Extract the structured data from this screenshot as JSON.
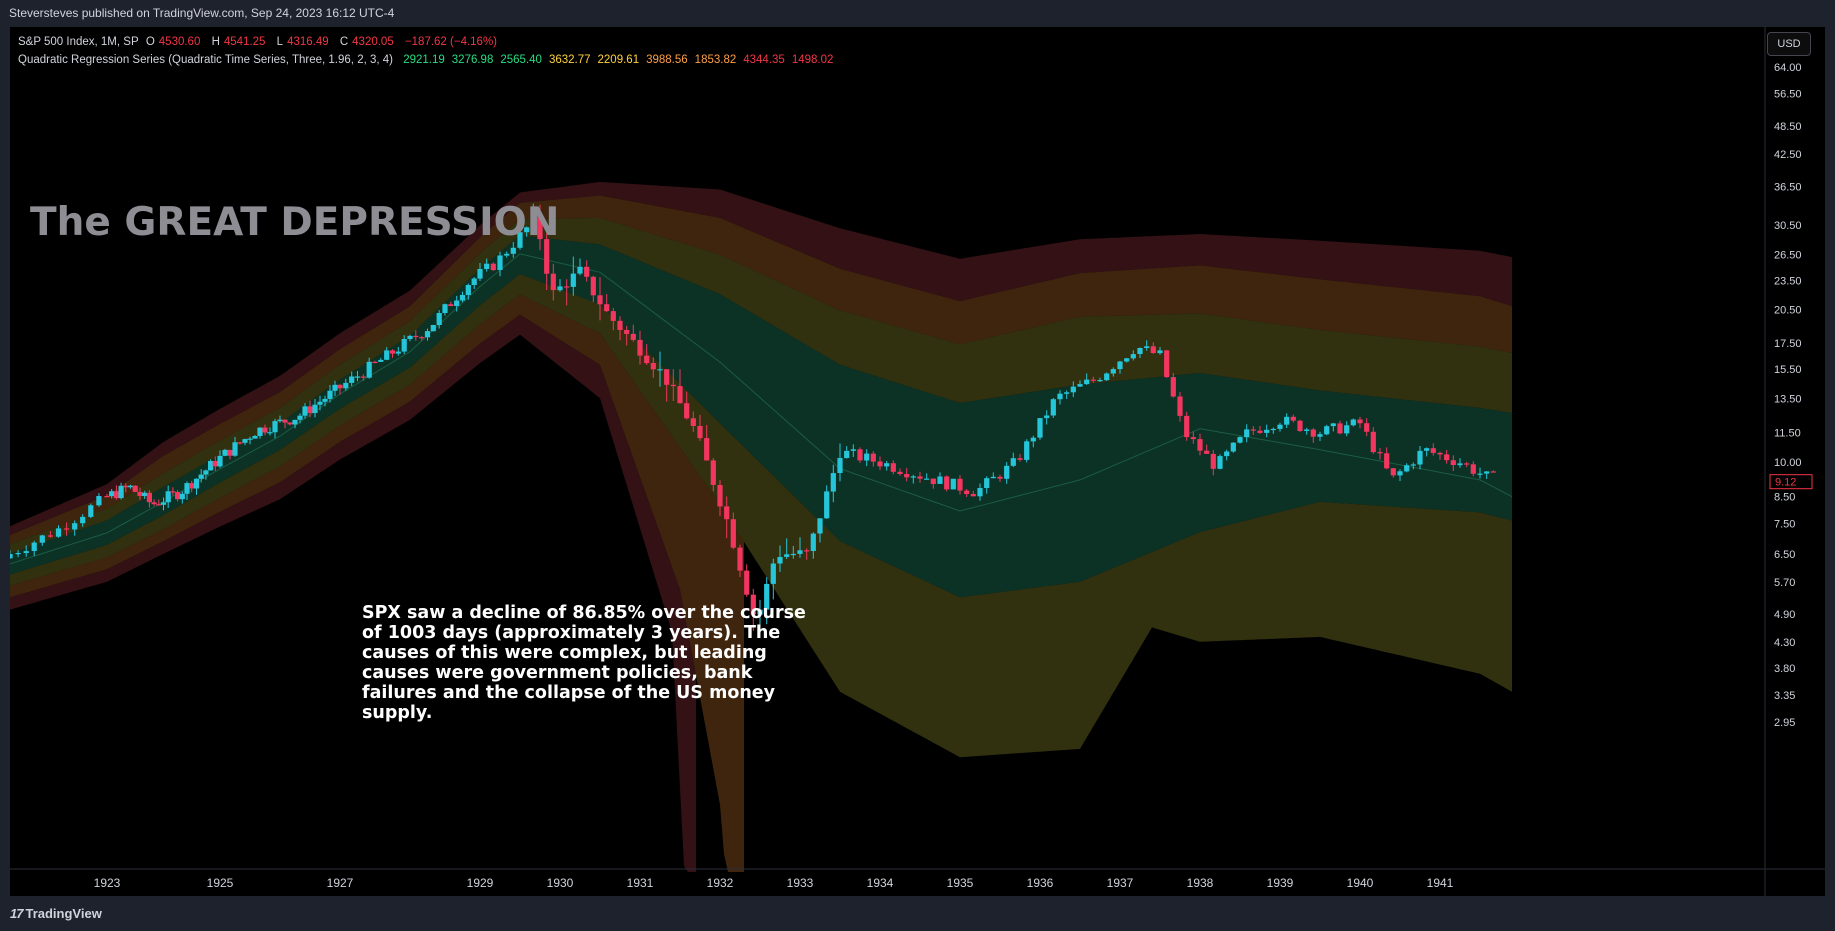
{
  "header": {
    "published": "Steversteves published on TradingView.com, Sep 24, 2023 16:12 UTC-4"
  },
  "legend": {
    "symbol": "S&P 500 Index, 1M, SP",
    "o_label": "O",
    "o_value": "4530.60",
    "h_label": "H",
    "h_value": "4541.25",
    "l_label": "L",
    "l_value": "4316.49",
    "c_label": "C",
    "c_value": "4320.05",
    "change": "−187.62 (−4.16%)",
    "indicator_name": "Quadratic Regression Series (Quadratic Time Series, Three, 1.96, 2, 3, 4)",
    "indicator_values": [
      {
        "text": "2921.19",
        "color": "#26de81"
      },
      {
        "text": "3276.98",
        "color": "#26de81"
      },
      {
        "text": "2565.40",
        "color": "#26de81"
      },
      {
        "text": "3632.77",
        "color": "#ffd23f"
      },
      {
        "text": "2209.61",
        "color": "#ffd23f"
      },
      {
        "text": "3988.56",
        "color": "#ff9f43"
      },
      {
        "text": "1853.82",
        "color": "#ff9f43"
      },
      {
        "text": "4344.35",
        "color": "#f23645"
      },
      {
        "text": "1498.02",
        "color": "#f23645"
      }
    ]
  },
  "currency_button": "USD",
  "annotations": {
    "title": "The GREAT DEPRESSION",
    "note": "SPX saw a decline of 86.85% over the course of 1003 days (approximately 3 years). The causes of this were complex, but leading causes were government policies, bank failures and the collapse of the US money supply."
  },
  "branding": {
    "logo_mark": "17",
    "logo_text": "TradingView"
  },
  "colors": {
    "up": "#26c6da",
    "down": "#f23660",
    "background": "#000000",
    "band_inner": "#0e3b2b",
    "band_2": "#3a3a12",
    "band_3": "#4b2c10",
    "band_outer": "#3c1418"
  },
  "chart_data": {
    "type": "candlestick",
    "title": "S&P 500 Index, 1M, SP",
    "y_scale": "log",
    "y_ticks": [
      64.0,
      56.5,
      48.5,
      42.5,
      36.5,
      30.5,
      26.5,
      23.5,
      20.5,
      17.5,
      15.5,
      13.5,
      11.5,
      10.0,
      8.5,
      7.5,
      6.5,
      5.7,
      4.9,
      4.3,
      3.8,
      3.35,
      2.95
    ],
    "y_tick_labels": [
      "64.00",
      "56.50",
      "48.50",
      "42.50",
      "36.50",
      "30.50",
      "26.50",
      "23.50",
      "20.50",
      "17.50",
      "15.50",
      "13.50",
      "11.50",
      "10.00",
      "8.50",
      "7.50",
      "6.50",
      "5.70",
      "4.90",
      "4.30",
      "3.80",
      "3.35",
      "2.95"
    ],
    "last_price_label": "9.12",
    "last_price": 9.12,
    "x_ticks": [
      {
        "label": "1923",
        "year": 1923.0
      },
      {
        "label": "1925",
        "year": 1925.0
      },
      {
        "label": "1927",
        "year": 1927.0
      },
      {
        "label": "1929",
        "year": 1929.0
      },
      {
        "label": "1930",
        "year": 1930.0
      },
      {
        "label": "1931",
        "year": 1931.0
      },
      {
        "label": "1932",
        "year": 1932.0
      },
      {
        "label": "1933",
        "year": 1933.0
      },
      {
        "label": "1934",
        "year": 1934.0
      },
      {
        "label": "1935",
        "year": 1935.0
      },
      {
        "label": "1936",
        "year": 1936.0
      },
      {
        "label": "1937",
        "year": 1937.0
      },
      {
        "label": "1938",
        "year": 1938.0
      },
      {
        "label": "1939",
        "year": 1939.0
      },
      {
        "label": "1940",
        "year": 1940.0
      },
      {
        "label": "1941",
        "year": 1941.0
      }
    ],
    "price_anchors": [
      [
        1922.0,
        6.5
      ],
      [
        1922.5,
        7.3
      ],
      [
        1923.0,
        8.5
      ],
      [
        1923.4,
        8.9
      ],
      [
        1923.8,
        8.2
      ],
      [
        1924.3,
        8.7
      ],
      [
        1925.0,
        10.2
      ],
      [
        1925.6,
        11.6
      ],
      [
        1926.3,
        12.4
      ],
      [
        1927.0,
        14.2
      ],
      [
        1927.6,
        16.2
      ],
      [
        1928.3,
        19.0
      ],
      [
        1928.8,
        23.0
      ],
      [
        1929.2,
        25.5
      ],
      [
        1929.7,
        31.5
      ],
      [
        1929.9,
        22.0
      ],
      [
        1930.25,
        24.5
      ],
      [
        1930.6,
        20.0
      ],
      [
        1931.0,
        17.0
      ],
      [
        1931.3,
        15.0
      ],
      [
        1931.7,
        11.5
      ],
      [
        1932.1,
        7.5
      ],
      [
        1932.45,
        4.7
      ],
      [
        1932.7,
        6.5
      ],
      [
        1933.1,
        6.5
      ],
      [
        1933.5,
        10.5
      ],
      [
        1934.0,
        10.0
      ],
      [
        1934.5,
        9.4
      ],
      [
        1935.2,
        8.7
      ],
      [
        1935.7,
        10.0
      ],
      [
        1936.2,
        13.5
      ],
      [
        1936.7,
        14.8
      ],
      [
        1937.2,
        17.2
      ],
      [
        1937.5,
        16.5
      ],
      [
        1937.8,
        11.5
      ],
      [
        1938.2,
        9.8
      ],
      [
        1938.6,
        11.5
      ],
      [
        1939.0,
        12.2
      ],
      [
        1939.5,
        11.5
      ],
      [
        1940.0,
        12.0
      ],
      [
        1940.4,
        9.2
      ],
      [
        1940.8,
        10.6
      ],
      [
        1941.25,
        10.0
      ],
      [
        1941.6,
        9.3
      ]
    ],
    "regression_bands": {
      "center": [
        [
          1922.0,
          6.2
        ],
        [
          1924.0,
          8.3
        ],
        [
          1926.0,
          11.3
        ],
        [
          1928.0,
          16.8
        ],
        [
          1929.5,
          26.6
        ],
        [
          1930.5,
          24.4
        ],
        [
          1932.0,
          16.0
        ],
        [
          1933.5,
          9.7
        ],
        [
          1935.0,
          7.95
        ],
        [
          1936.5,
          9.2
        ],
        [
          1938.0,
          11.7
        ],
        [
          1939.5,
          10.6
        ],
        [
          1941.5,
          9.2
        ],
        [
          1941.9,
          8.5
        ]
      ],
      "upper": [
        [
          [
            1922.0,
            6.5
          ],
          [
            1924.0,
            8.9
          ],
          [
            1926.0,
            12.0
          ],
          [
            1928.0,
            18.1
          ],
          [
            1929.5,
            29.0
          ],
          [
            1930.5,
            27.8
          ],
          [
            1932.0,
            22.0
          ],
          [
            1933.5,
            15.8
          ],
          [
            1935.0,
            13.2
          ],
          [
            1936.5,
            14.4
          ],
          [
            1938.0,
            15.2
          ],
          [
            1939.5,
            14.0
          ],
          [
            1941.5,
            12.9
          ],
          [
            1941.9,
            12.6
          ]
        ],
        [
          [
            1922.0,
            6.8
          ],
          [
            1924.0,
            9.5
          ],
          [
            1926.0,
            12.9
          ],
          [
            1928.0,
            19.4
          ],
          [
            1929.5,
            31.3
          ],
          [
            1930.5,
            31.5
          ],
          [
            1932.0,
            26.5
          ],
          [
            1933.5,
            20.4
          ],
          [
            1935.0,
            17.4
          ],
          [
            1936.5,
            19.8
          ],
          [
            1938.0,
            20.1
          ],
          [
            1939.5,
            18.6
          ],
          [
            1941.5,
            17.2
          ],
          [
            1941.9,
            16.7
          ]
        ],
        [
          [
            1922.0,
            7.1
          ],
          [
            1924.0,
            10.3
          ],
          [
            1926.0,
            13.9
          ],
          [
            1928.0,
            20.8
          ],
          [
            1929.5,
            33.8
          ],
          [
            1930.5,
            35.0
          ],
          [
            1932.0,
            31.5
          ],
          [
            1933.5,
            24.8
          ],
          [
            1935.0,
            21.3
          ],
          [
            1936.5,
            24.3
          ],
          [
            1938.0,
            25.2
          ],
          [
            1939.5,
            23.6
          ],
          [
            1941.5,
            21.8
          ],
          [
            1941.9,
            20.8
          ]
        ],
        [
          [
            1922.0,
            7.4
          ],
          [
            1924.0,
            11.0
          ],
          [
            1926.0,
            15.0
          ],
          [
            1928.0,
            22.4
          ],
          [
            1929.5,
            35.5
          ],
          [
            1930.5,
            37.3
          ],
          [
            1932.0,
            36.0
          ],
          [
            1933.5,
            30.0
          ],
          [
            1935.0,
            26.0
          ],
          [
            1936.5,
            28.5
          ],
          [
            1938.0,
            29.2
          ],
          [
            1939.5,
            28.3
          ],
          [
            1941.5,
            27.0
          ],
          [
            1941.9,
            26.2
          ]
        ]
      ],
      "lower": [
        [
          [
            1922.0,
            5.9
          ],
          [
            1924.0,
            7.8
          ],
          [
            1926.0,
            10.6
          ],
          [
            1928.0,
            15.6
          ],
          [
            1929.5,
            24.2
          ],
          [
            1930.5,
            21.0
          ],
          [
            1932.0,
            12.0
          ],
          [
            1933.5,
            6.9
          ],
          [
            1935.0,
            5.3
          ],
          [
            1936.5,
            5.7
          ],
          [
            1938.0,
            7.2
          ],
          [
            1939.5,
            8.3
          ],
          [
            1941.5,
            7.9
          ],
          [
            1941.9,
            7.6
          ]
        ],
        [
          [
            1922.0,
            5.6
          ],
          [
            1924.0,
            7.3
          ],
          [
            1926.0,
            9.8
          ],
          [
            1928.0,
            14.4
          ],
          [
            1929.5,
            22.0
          ],
          [
            1930.5,
            18.3
          ],
          [
            1932.0,
            8.2
          ],
          [
            1933.5,
            3.4
          ],
          [
            1935.0,
            2.5
          ],
          [
            1936.5,
            2.6
          ],
          [
            1937.4,
            4.6
          ],
          [
            1938.0,
            4.3
          ],
          [
            1939.5,
            4.4
          ],
          [
            1941.5,
            3.7
          ],
          [
            1941.9,
            3.4
          ]
        ],
        [
          [
            1922.0,
            5.3
          ],
          [
            1924.0,
            6.9
          ],
          [
            1926.0,
            9.1
          ],
          [
            1928.0,
            13.3
          ],
          [
            1929.5,
            20.0
          ],
          [
            1930.5,
            15.8
          ],
          [
            1931.5,
            5.5
          ],
          [
            1932.0,
            2.0
          ],
          [
            1932.3,
            0.5
          ]
        ],
        [
          [
            1922.0,
            5.0
          ],
          [
            1924.0,
            6.5
          ],
          [
            1926.0,
            8.4
          ],
          [
            1928.0,
            12.2
          ],
          [
            1929.5,
            18.2
          ],
          [
            1930.5,
            13.5
          ],
          [
            1931.4,
            4.5
          ],
          [
            1931.7,
            0.5
          ]
        ]
      ]
    },
    "band_colors": [
      "#0e3b2b",
      "#3a3a12",
      "#4b2c10",
      "#3c1418"
    ]
  }
}
